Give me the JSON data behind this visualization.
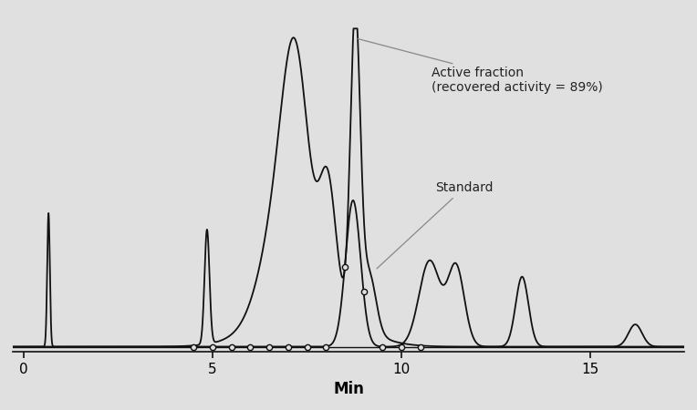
{
  "background_color": "#e0e0e0",
  "line_color": "#111111",
  "xlabel": "Min",
  "xlabel_fontsize": 12,
  "tick_fontsize": 11,
  "xlim": [
    -0.3,
    17.5
  ],
  "ylim": [
    -0.015,
    1.05
  ],
  "annotation_active": "Active fraction\n(recovered activity = 89%)",
  "annotation_standard": "Standard"
}
